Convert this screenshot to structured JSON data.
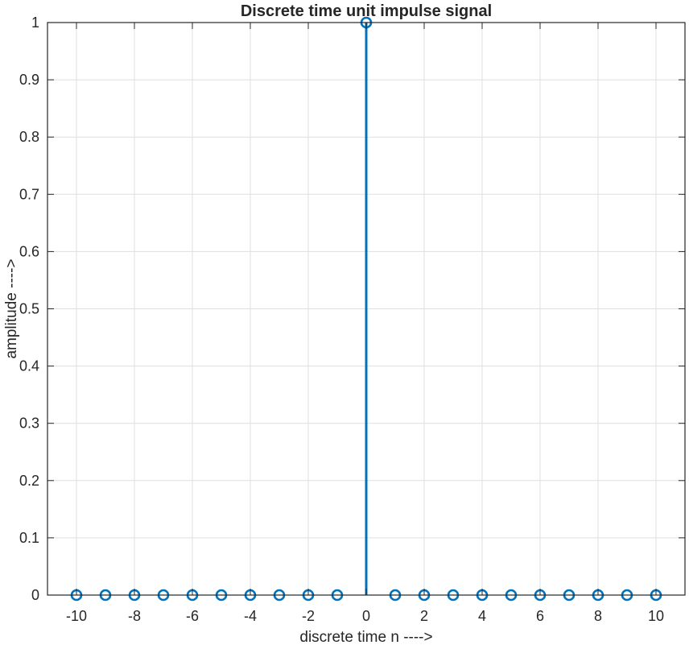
{
  "chart_data": {
    "type": "stem",
    "title": "Discrete time unit impulse signal",
    "xlabel": "discrete time n ---->",
    "ylabel": "amplitude ---->",
    "x": [
      -10,
      -9,
      -8,
      -7,
      -6,
      -5,
      -4,
      -3,
      -2,
      -1,
      0,
      1,
      2,
      3,
      4,
      5,
      6,
      7,
      8,
      9,
      10
    ],
    "y": [
      0,
      0,
      0,
      0,
      0,
      0,
      0,
      0,
      0,
      0,
      1,
      0,
      0,
      0,
      0,
      0,
      0,
      0,
      0,
      0,
      0
    ],
    "xlim": [
      -11,
      11
    ],
    "ylim": [
      0,
      1
    ],
    "xticks": [
      -10,
      -8,
      -6,
      -4,
      -2,
      0,
      2,
      4,
      6,
      8,
      10
    ],
    "yticks": [
      0,
      0.1,
      0.2,
      0.3,
      0.4,
      0.5,
      0.6,
      0.7,
      0.8,
      0.9,
      1
    ],
    "grid": true,
    "color": "#0072BD",
    "grid_color": "#dfdfdf",
    "axis_color": "#262626"
  }
}
